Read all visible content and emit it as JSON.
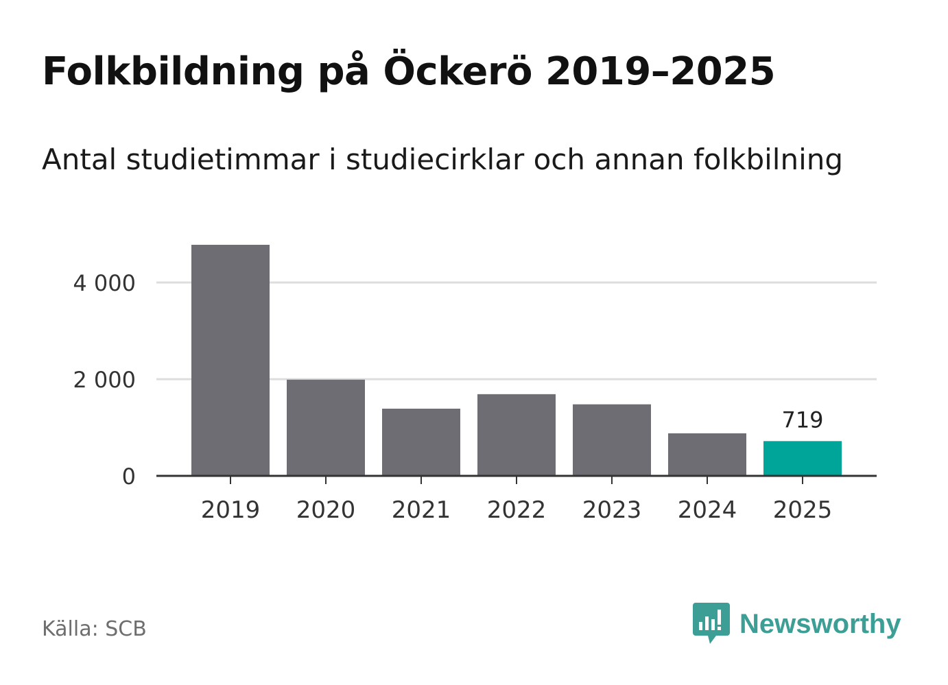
{
  "chart_data": {
    "type": "bar",
    "title": "Folkbildning på Öckerö 2019–2025",
    "subtitle": "Antal studietimmar i studiecirklar och annan folkbilning",
    "categories": [
      "2019",
      "2020",
      "2021",
      "2022",
      "2023",
      "2024",
      "2025"
    ],
    "values": [
      4780,
      1990,
      1390,
      1690,
      1480,
      880,
      719
    ],
    "highlight_index": 6,
    "data_labels": [
      {
        "index": 6,
        "text": "719"
      }
    ],
    "ylim": [
      0,
      4800
    ],
    "yticks": [
      0,
      2000,
      4000
    ],
    "ytick_labels": [
      "0",
      "2 000",
      "4 000"
    ],
    "grid": true,
    "xlabel": "",
    "ylabel": "",
    "colors": {
      "bar": "#6e6d73",
      "highlight": "#00a59a",
      "grid": "#dddddd",
      "axis": "#333333"
    }
  },
  "footer": {
    "source": "Källa: SCB",
    "brand": "Newsworthy",
    "brand_icon": "bar-chart-speech-bubble-icon",
    "brand_color": "#3d9e95"
  }
}
